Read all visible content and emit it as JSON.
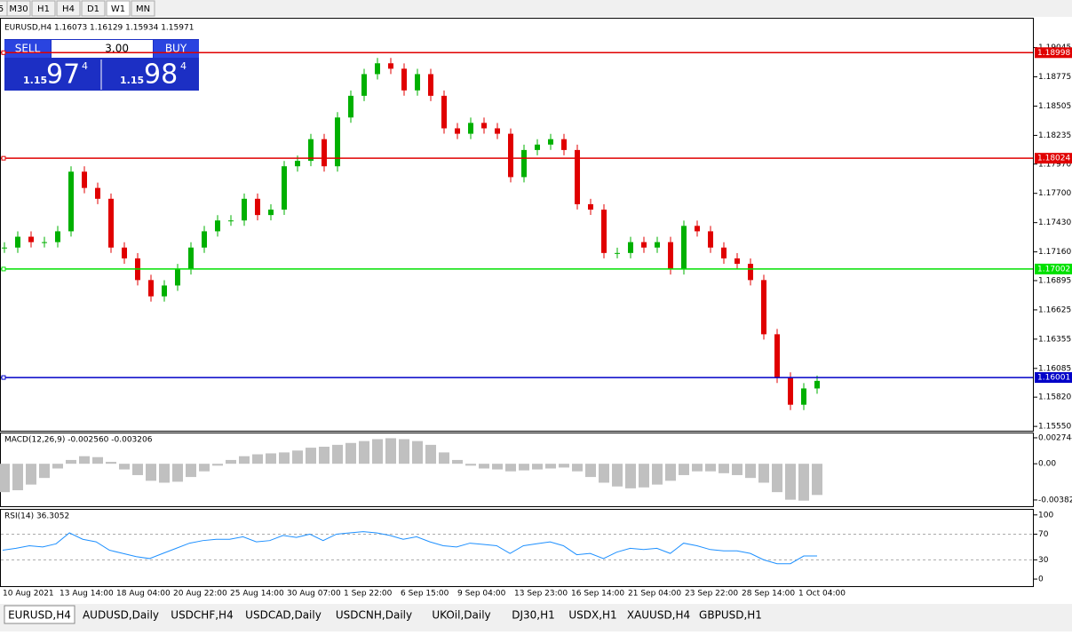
{
  "toolbar": {
    "timeframes": [
      "5",
      "M30",
      "H1",
      "H4",
      "D1",
      "W1",
      "MN"
    ],
    "active": "W1"
  },
  "main_chart": {
    "header": "EURUSD,H4  1.16073 1.16129 1.15934 1.15971",
    "ylim": [
      1.1551,
      1.1932
    ],
    "yticks": [
      1.19045,
      1.18775,
      1.18505,
      1.18235,
      {
        "value": 1.1797,
        "label": "1.17970"
      },
      {
        "value": 1.177,
        "label": "1.17700"
      },
      {
        "value": 1.1743,
        "label": "1.17430"
      },
      {
        "value": 1.1716,
        "label": "1.17160"
      },
      1.16895,
      1.16625,
      1.16355,
      1.16085,
      {
        "value": 1.1582,
        "label": "1.15820"
      },
      {
        "value": 1.1555,
        "label": "1.15550"
      }
    ],
    "levels": [
      {
        "value": 1.18998,
        "color": "#e00000"
      },
      {
        "value": 1.18024,
        "color": "#e00000"
      },
      {
        "value": 1.17002,
        "color": "#00e000"
      },
      {
        "value": 1.16001,
        "color": "#0000c8"
      }
    ],
    "closes": [
      1.172,
      1.173,
      1.1725,
      1.1725,
      1.1735,
      1.179,
      1.1775,
      1.1765,
      1.172,
      1.171,
      1.169,
      1.1675,
      1.1685,
      1.17,
      1.172,
      1.1735,
      1.1745,
      1.1745,
      1.1765,
      1.175,
      1.1755,
      1.1795,
      1.18,
      1.182,
      1.1795,
      1.184,
      1.186,
      1.188,
      1.189,
      1.1885,
      1.1865,
      1.188,
      1.186,
      1.183,
      1.1825,
      1.1835,
      1.183,
      1.1825,
      1.1785,
      1.181,
      1.1815,
      1.182,
      1.181,
      1.176,
      1.1755,
      1.1715,
      1.1715,
      1.1725,
      1.172,
      1.1725,
      1.17,
      1.174,
      1.1735,
      1.172,
      1.171,
      1.1705,
      1.169,
      1.164,
      1.16,
      1.1575,
      1.159,
      1.1597
    ]
  },
  "trade_panel": {
    "sell": "SELL",
    "lots": "3.00",
    "buy": "BUY",
    "bid_big": "1.15",
    "bid_mid": "97",
    "bid_small": "4",
    "ask_big": "1.15",
    "ask_mid": "98",
    "ask_small": "4"
  },
  "macd": {
    "header": "MACD(12,26,9) -0.002560 -0.003206",
    "ylim": [
      -0.00449,
      0.00321
    ],
    "yticks": [
      0.002744,
      {
        "value": 0,
        "label": "0.00"
      },
      -0.003829
    ],
    "hist": [
      -0.003,
      -0.0028,
      -0.0022,
      -0.0015,
      -0.0005,
      0.0004,
      0.0008,
      0.0007,
      0.0002,
      -0.0006,
      -0.0012,
      -0.0018,
      -0.002,
      -0.0019,
      -0.0014,
      -0.0008,
      -0.0002,
      0.0004,
      0.0008,
      0.001,
      0.0011,
      0.0012,
      0.0014,
      0.0017,
      0.0018,
      0.002,
      0.0022,
      0.0024,
      0.0026,
      0.0027,
      0.0026,
      0.0024,
      0.002,
      0.0012,
      0.0004,
      -0.0002,
      -0.0005,
      -0.0006,
      -0.0008,
      -0.0007,
      -0.0006,
      -0.0005,
      -0.0004,
      -0.0008,
      -0.0014,
      -0.002,
      -0.0024,
      -0.0026,
      -0.0025,
      -0.0022,
      -0.0018,
      -0.0012,
      -0.0008,
      -0.0008,
      -0.001,
      -0.0012,
      -0.0015,
      -0.002,
      -0.003,
      -0.0038,
      -0.0039,
      -0.0033
    ]
  },
  "rsi": {
    "header": "RSI(14) 36.3052",
    "ylim": [
      -11,
      108
    ],
    "yticks": [
      100,
      70,
      30,
      0
    ],
    "levels": [
      70,
      30
    ],
    "values": [
      45,
      48,
      52,
      50,
      55,
      72,
      62,
      58,
      45,
      40,
      35,
      32,
      40,
      48,
      56,
      60,
      62,
      62,
      66,
      58,
      60,
      68,
      65,
      70,
      60,
      70,
      72,
      74,
      72,
      68,
      62,
      66,
      58,
      52,
      50,
      56,
      54,
      52,
      40,
      52,
      55,
      58,
      52,
      38,
      40,
      32,
      42,
      48,
      46,
      48,
      40,
      56,
      52,
      46,
      44,
      44,
      40,
      30,
      24,
      24,
      36,
      36
    ]
  },
  "time_labels": [
    "10 Aug 2021",
    "13 Aug 14:00",
    "18 Aug 04:00",
    "20 Aug 22:00",
    "25 Aug 14:00",
    "30 Aug 07:00",
    "1 Sep 22:00",
    "6 Sep 15:00",
    "9 Sep 04:00",
    "13 Sep 23:00",
    "16 Sep 14:00",
    "21 Sep 04:00",
    "23 Sep 22:00",
    "28 Sep 14:00",
    "1 Oct 04:00"
  ],
  "tabs": [
    "EURUSD,H4",
    "AUDUSD,Daily",
    "USDCHF,H4",
    "USDCAD,Daily",
    "USDCNH,Daily",
    "UKOil,Daily",
    "DJ30,H1",
    "USDX,H1",
    "XAUUSD,H4",
    "GBPUSD,H1"
  ]
}
